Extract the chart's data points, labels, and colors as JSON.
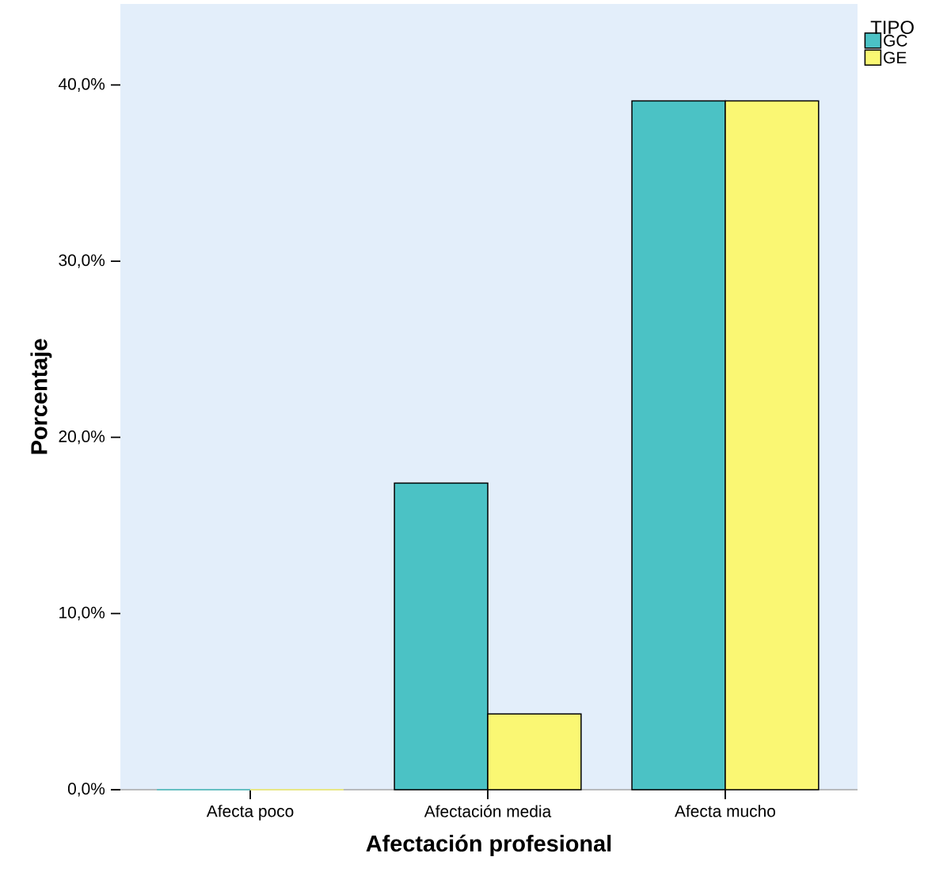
{
  "chart_data": {
    "type": "bar",
    "xlabel": "Afectación profesional",
    "ylabel": "Porcentaje",
    "legend_title": "TIPO",
    "categories": [
      "Afecta poco",
      "Afectación media",
      "Afecta mucho"
    ],
    "series": [
      {
        "name": "GC",
        "color": "#4bc2c5",
        "values": [
          0,
          17.4,
          39.1
        ]
      },
      {
        "name": "GE",
        "color": "#faf773",
        "values": [
          0,
          4.3,
          39.1
        ]
      }
    ],
    "ylim": [
      0,
      44.6
    ],
    "yticks": [
      {
        "value": 0,
        "label": "0,0%"
      },
      {
        "value": 10,
        "label": "10,0%"
      },
      {
        "value": 20,
        "label": "20,0%"
      },
      {
        "value": 30,
        "label": "30,0%"
      },
      {
        "value": 40,
        "label": "40,0%"
      }
    ],
    "grid": false,
    "legend": "top right"
  }
}
